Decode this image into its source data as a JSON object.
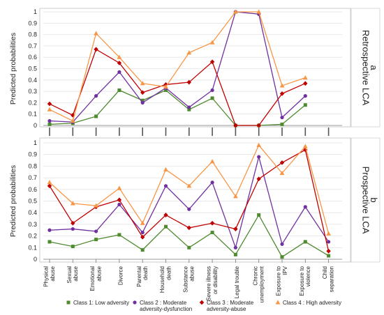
{
  "chart_data": [
    {
      "type": "line",
      "panel_label": "a",
      "side_title": "Retrospective LCA",
      "ylabel": "Predicted probabilities",
      "ylim": [
        0,
        1
      ],
      "yticks": [
        "0",
        "0.1",
        "0.2",
        "0.3",
        "0.4",
        "0.5",
        "0.6",
        "0.7",
        "0.8",
        "0.9",
        "1"
      ],
      "series": [
        {
          "name": "Class 1: Low adversity",
          "values": [
            0.01,
            0.02,
            0.08,
            0.31,
            0.22,
            0.31,
            0.14,
            0.24,
            0.0,
            0.0,
            0.01,
            0.18
          ]
        },
        {
          "name": "Class 2 : Moderate adversity-dysfunction",
          "values": [
            0.04,
            0.03,
            0.26,
            0.47,
            0.2,
            0.33,
            0.16,
            0.31,
            1.0,
            0.98,
            0.07,
            0.26
          ]
        },
        {
          "name": "Class 3 : Moderate adversity-abuse",
          "values": [
            0.19,
            0.09,
            0.67,
            0.55,
            0.29,
            0.36,
            0.38,
            0.56,
            0.0,
            0.0,
            0.28,
            0.37
          ]
        },
        {
          "name": "Class 4 : High adversity",
          "values": [
            0.14,
            0.04,
            0.81,
            0.6,
            0.37,
            0.34,
            0.64,
            0.73,
            1.0,
            1.0,
            0.35,
            0.42
          ]
        }
      ],
      "point_slots": [
        0,
        1,
        2,
        3,
        4,
        5,
        6,
        7,
        8,
        9,
        10,
        11
      ]
    },
    {
      "type": "line",
      "panel_label": "b",
      "side_title": "Prospective LCA",
      "ylabel": "Predicted probabilities",
      "ylim": [
        0,
        1
      ],
      "yticks": [
        "0",
        "0.1",
        "0.2",
        "0.3",
        "0.4",
        "0.5",
        "0.6",
        "0.7",
        "0.8",
        "0.9",
        "1"
      ],
      "categories": [
        "Physical abuse",
        "Sexual abuse",
        "Emotional abuse",
        "Divorce",
        "Parental death",
        "Household death",
        "Substance abuse",
        "Severe illness or disability",
        "Legal trouble",
        "Chronic unemployment",
        "Exposure to IPV",
        "Exposure to violence",
        "Child separation"
      ],
      "series": [
        {
          "name": "Class 1: Low adversity",
          "values": [
            0.15,
            0.11,
            0.17,
            0.21,
            0.08,
            0.28,
            0.1,
            0.23,
            0.04,
            0.38,
            0.02,
            0.15,
            0.03
          ]
        },
        {
          "name": "Class 2 : Moderate adversity-dysfunction",
          "values": [
            0.25,
            0.26,
            0.24,
            0.47,
            0.23,
            0.63,
            0.43,
            0.66,
            0.1,
            0.88,
            0.13,
            0.45,
            0.15
          ]
        },
        {
          "name": "Class 3 : Moderate adversity-abuse",
          "values": [
            0.63,
            0.31,
            0.45,
            0.51,
            0.19,
            0.38,
            0.27,
            0.31,
            0.26,
            0.69,
            0.83,
            0.94,
            0.07
          ]
        },
        {
          "name": "Class 4 : High adversity",
          "values": [
            0.66,
            0.48,
            0.46,
            0.61,
            0.31,
            0.77,
            0.63,
            0.84,
            0.54,
            0.98,
            0.74,
            0.97,
            0.22
          ]
        }
      ]
    }
  ],
  "legend": [
    {
      "label_lines": [
        "Class 1: Low adversity"
      ],
      "color": "#4e8a2e",
      "marker": "square"
    },
    {
      "label_lines": [
        "Class 2 : Moderate",
        "adversity-dysfunction"
      ],
      "color": "#7030a0",
      "marker": "circle"
    },
    {
      "label_lines": [
        "Class 3 : Moderate",
        "adversity-abuse"
      ],
      "color": "#c00000",
      "marker": "diamond"
    },
    {
      "label_lines": [
        "Class 4 : High adversity"
      ],
      "color": "#f79646",
      "marker": "triangle"
    }
  ],
  "series_colors": [
    "#4e8a2e",
    "#7030a0",
    "#c00000",
    "#f79646"
  ],
  "category_label_lines": [
    [
      "Physical",
      "abuse"
    ],
    [
      "Sexual",
      "abuse"
    ],
    [
      "Emotional",
      "abuse"
    ],
    [
      "Divorce"
    ],
    [
      "Parental",
      "death"
    ],
    [
      "Household",
      "death"
    ],
    [
      "Substance",
      "abuse"
    ],
    [
      "Severe illness",
      "or disability"
    ],
    [
      "Legal trouble"
    ],
    [
      "Chronic",
      "unemployment"
    ],
    [
      "Exposure to",
      "IPV"
    ],
    [
      "Exposure to",
      "violence"
    ],
    [
      "Child",
      "separation"
    ]
  ]
}
